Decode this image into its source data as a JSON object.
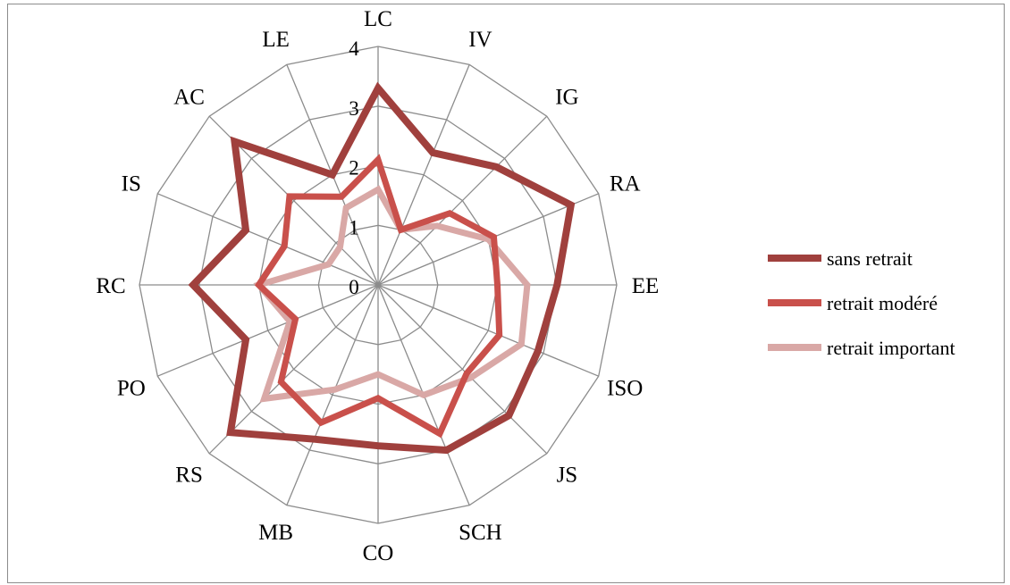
{
  "chart_data": {
    "type": "radar",
    "categories": [
      "LC",
      "IV",
      "IG",
      "RA",
      "EE",
      "ISO",
      "JS",
      "SCH",
      "CO",
      "MB",
      "RS",
      "PO",
      "RC",
      "IS",
      "AC",
      "LE"
    ],
    "rlim": [
      0,
      4
    ],
    "ticks": [
      "0",
      "1",
      "2",
      "3",
      "4"
    ],
    "grid": true,
    "legend_position": "right",
    "series": [
      {
        "name": "sans retrait",
        "color": "#a0403d",
        "values": [
          3.3,
          2.4,
          2.8,
          3.5,
          3.0,
          2.9,
          3.1,
          3.0,
          2.7,
          2.8,
          3.5,
          2.4,
          3.1,
          2.4,
          3.4,
          2.0
        ]
      },
      {
        "name": "retrait modéré",
        "color": "#c9504b",
        "values": [
          2.1,
          1.0,
          1.7,
          2.1,
          2.0,
          2.2,
          2.1,
          2.7,
          1.9,
          2.5,
          2.3,
          1.5,
          2.0,
          1.7,
          2.1,
          1.6
        ]
      },
      {
        "name": "retrait important",
        "color": "#d9a8a6",
        "values": [
          1.6,
          1.0,
          1.4,
          2.0,
          2.5,
          2.6,
          2.2,
          2.0,
          1.5,
          1.9,
          2.7,
          1.6,
          2.0,
          0.9,
          0.9,
          1.4
        ]
      }
    ]
  }
}
